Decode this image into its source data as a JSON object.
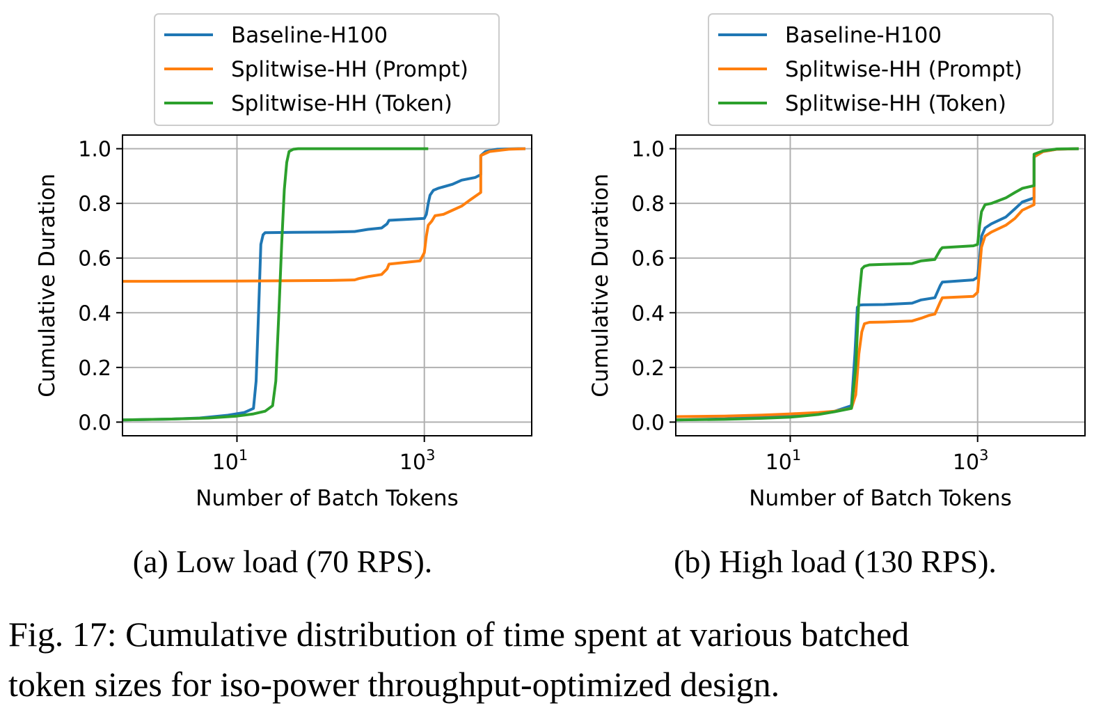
{
  "figure": {
    "caption_line1": "Fig. 17: Cumulative distribution of time spent at various batched",
    "caption_line2": "token sizes for iso-power throughput-optimized design."
  },
  "colors": {
    "Baseline-H100": "#1f77b4",
    "Splitwise-HH (Prompt)": "#ff7f0e",
    "Splitwise-HH (Token)": "#2ca02c"
  },
  "chart_data": [
    {
      "type": "line",
      "subcaption": "(a) Low load (70 RPS).",
      "xlabel": "Number of Batch Tokens",
      "ylabel": "Cumulative Duration",
      "xscale": "log",
      "xlim": [
        0.6,
        14000
      ],
      "ylim": [
        -0.05,
        1.05
      ],
      "xticks": [
        {
          "value": 10,
          "base": "10",
          "exp": "1"
        },
        {
          "value": 1000,
          "base": "10",
          "exp": "3"
        }
      ],
      "yticks": [
        "0.0",
        "0.2",
        "0.4",
        "0.6",
        "0.8",
        "1.0"
      ],
      "grid": true,
      "legend_position": "above",
      "series": [
        {
          "name": "Baseline-H100",
          "x": [
            0.6,
            1,
            2,
            4,
            8,
            12,
            15,
            16,
            17,
            18,
            19,
            20,
            40,
            100,
            180,
            250,
            350,
            400,
            420,
            1000,
            1050,
            1100,
            1150,
            1250,
            1400,
            2000,
            2500,
            3500,
            4000,
            4000,
            4500,
            6000,
            10000,
            12000
          ],
          "y": [
            0.008,
            0.009,
            0.011,
            0.015,
            0.025,
            0.035,
            0.05,
            0.15,
            0.4,
            0.65,
            0.685,
            0.693,
            0.694,
            0.695,
            0.697,
            0.705,
            0.71,
            0.725,
            0.738,
            0.745,
            0.76,
            0.8,
            0.83,
            0.848,
            0.855,
            0.87,
            0.885,
            0.895,
            0.905,
            0.975,
            0.99,
            0.998,
            1.0,
            1.0
          ]
        },
        {
          "name": "Splitwise-HH (Prompt)",
          "x": [
            0.6,
            1,
            10,
            100,
            180,
            200,
            250,
            350,
            400,
            420,
            900,
            1000,
            1050,
            1100,
            1200,
            1300,
            1600,
            2000,
            2500,
            3000,
            4000,
            4000,
            5000,
            8000,
            12000
          ],
          "y": [
            0.515,
            0.515,
            0.516,
            0.518,
            0.52,
            0.525,
            0.532,
            0.54,
            0.56,
            0.578,
            0.59,
            0.62,
            0.68,
            0.72,
            0.735,
            0.755,
            0.76,
            0.775,
            0.79,
            0.81,
            0.84,
            0.975,
            0.99,
            0.998,
            1.0
          ]
        },
        {
          "name": "Splitwise-HH (Token)",
          "x": [
            0.6,
            2,
            5,
            10,
            15,
            20,
            24,
            26,
            28,
            30,
            32,
            34,
            36,
            40,
            45,
            50,
            100,
            1100
          ],
          "y": [
            0.008,
            0.011,
            0.015,
            0.022,
            0.03,
            0.04,
            0.06,
            0.15,
            0.4,
            0.65,
            0.85,
            0.95,
            0.99,
            0.998,
            1.0,
            1.0,
            1.0,
            1.0
          ]
        }
      ]
    },
    {
      "type": "line",
      "subcaption": "(b) High load (130 RPS).",
      "xlabel": "Number of Batch Tokens",
      "ylabel": "Cumulative Duration",
      "xscale": "log",
      "xlim": [
        0.6,
        14000
      ],
      "ylim": [
        -0.05,
        1.05
      ],
      "xticks": [
        {
          "value": 10,
          "base": "10",
          "exp": "1"
        },
        {
          "value": 1000,
          "base": "10",
          "exp": "3"
        }
      ],
      "yticks": [
        "0.0",
        "0.2",
        "0.4",
        "0.6",
        "0.8",
        "1.0"
      ],
      "grid": true,
      "legend_position": "above",
      "series": [
        {
          "name": "Baseline-H100",
          "x": [
            0.6,
            2,
            5,
            10,
            20,
            30,
            45,
            49,
            52,
            55,
            60,
            100,
            200,
            250,
            350,
            400,
            420,
            900,
            1000,
            1050,
            1100,
            1200,
            1400,
            2000,
            2500,
            3000,
            4000,
            4000,
            5000,
            7000,
            12000
          ],
          "y": [
            0.008,
            0.012,
            0.018,
            0.022,
            0.03,
            0.04,
            0.06,
            0.25,
            0.42,
            0.428,
            0.429,
            0.43,
            0.435,
            0.447,
            0.455,
            0.5,
            0.512,
            0.52,
            0.53,
            0.6,
            0.68,
            0.71,
            0.725,
            0.75,
            0.78,
            0.805,
            0.82,
            0.97,
            0.99,
            0.998,
            1.0
          ]
        },
        {
          "name": "Splitwise-HH (Prompt)",
          "x": [
            0.6,
            2,
            5,
            10,
            20,
            30,
            45,
            50,
            54,
            58,
            62,
            70,
            100,
            200,
            250,
            300,
            350,
            400,
            420,
            900,
            1000,
            1050,
            1100,
            1200,
            1400,
            2000,
            2500,
            3000,
            4000,
            4000,
            5000,
            7000,
            12000
          ],
          "y": [
            0.02,
            0.022,
            0.026,
            0.03,
            0.035,
            0.04,
            0.05,
            0.1,
            0.25,
            0.33,
            0.36,
            0.365,
            0.366,
            0.37,
            0.38,
            0.39,
            0.395,
            0.44,
            0.455,
            0.46,
            0.475,
            0.56,
            0.64,
            0.68,
            0.695,
            0.72,
            0.745,
            0.775,
            0.795,
            0.97,
            0.99,
            0.998,
            1.0
          ]
        },
        {
          "name": "Splitwise-HH (Token)",
          "x": [
            0.6,
            2,
            5,
            10,
            20,
            30,
            45,
            50,
            54,
            58,
            62,
            70,
            100,
            200,
            250,
            350,
            400,
            420,
            900,
            1000,
            1050,
            1100,
            1200,
            1400,
            2000,
            2500,
            3000,
            4000,
            4000,
            5000,
            7000,
            12000
          ],
          "y": [
            0.008,
            0.01,
            0.014,
            0.018,
            0.028,
            0.038,
            0.05,
            0.2,
            0.45,
            0.56,
            0.57,
            0.575,
            0.577,
            0.58,
            0.59,
            0.595,
            0.63,
            0.638,
            0.645,
            0.65,
            0.72,
            0.77,
            0.795,
            0.8,
            0.82,
            0.84,
            0.855,
            0.865,
            0.98,
            0.992,
            0.999,
            1.0
          ]
        }
      ]
    }
  ]
}
